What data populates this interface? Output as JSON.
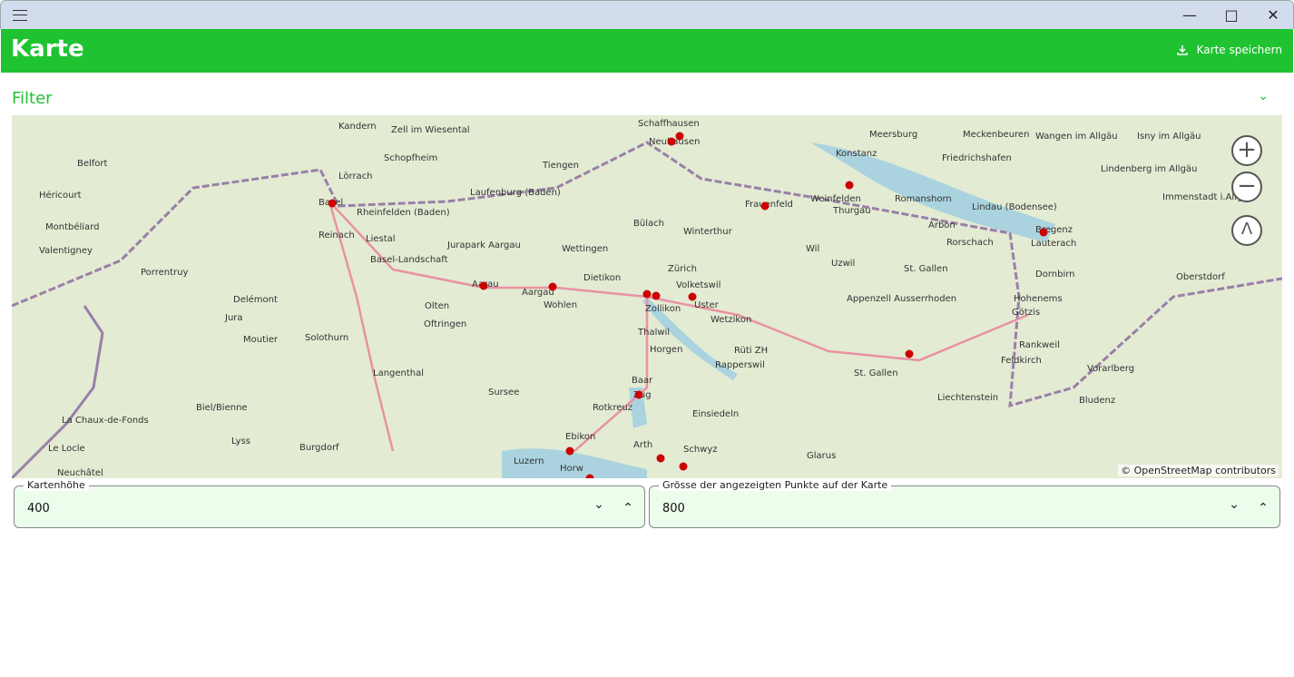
{
  "window": {
    "menu_icon": "hamburger-icon",
    "minimize_icon": "minimize-icon",
    "maximize_icon": "maximize-icon",
    "close_icon": "close-icon"
  },
  "header": {
    "title": "Karte",
    "save_label": "Karte speichern",
    "save_icon": "download-icon",
    "color": "#1fc331"
  },
  "filter": {
    "label": "Filter",
    "expand_icon": "chevron-down-icon"
  },
  "map": {
    "attribution": "© OpenStreetMap contributors",
    "marker_color": "#cc0000",
    "labels": [
      "Schaffhausen",
      "Neuhausen",
      "Kandern",
      "Zell im Wiesental",
      "Meersburg",
      "Meckenbeuren",
      "Belfort",
      "Schopfheim",
      "Tiengen",
      "Konstanz",
      "Friedrichshafen",
      "Lörrach",
      "Basel",
      "Rheinfelden (Baden)",
      "Laufenburg (Baden)",
      "Frauenfeld",
      "Weinfelden",
      "Romanshorn",
      "Lindau (Bodensee)",
      "Héricourt",
      "Montbéliard",
      "Bülach",
      "Winterthur",
      "Thurgau",
      "Arbon",
      "Bregenz",
      "Valentigney",
      "Reinach",
      "Liestal",
      "Jurapark Aargau",
      "Wettingen",
      "Wil",
      "Rorschach",
      "Lauterach",
      "Basel-Landschaft",
      "Dietikon",
      "Zürich",
      "Uzwil",
      "St. Gallen",
      "Dornbirn",
      "Porrentruy",
      "Aarau",
      "Aargau",
      "Volketswil",
      "Hohenems",
      "Delémont",
      "Olten",
      "Wohlen",
      "Zollikon",
      "Uster",
      "Appenzell Ausserrhoden",
      "Götzis",
      "Jura",
      "Oftringen",
      "Wetzikon",
      "Thalwil",
      "Horgen",
      "Rüti ZH",
      "Moutier",
      "Solothurn",
      "Rankweil",
      "Rapperswil",
      "Feldkirch",
      "Langenthal",
      "St. Gallen",
      "Vorarlberg",
      "Baar",
      "Sursee",
      "Zug",
      "Liechtenstein",
      "Biel/Bienne",
      "Rotkreuz",
      "Einsiedeln",
      "Bludenz",
      "La Chaux-de-Fonds",
      "Ebikon",
      "Arth",
      "Schwyz",
      "Lyss",
      "Burgdorf",
      "Luzern",
      "Horw",
      "Glarus",
      "Le Locle",
      "Neuchâtel",
      "Wangen im Allgäu",
      "Isny im Allgäu",
      "Lindenberg im Allgäu",
      "Immenstadt i.Allgäu",
      "Oberstdorf"
    ]
  },
  "fields": [
    {
      "label": "Kartenhöhe",
      "value": "400"
    },
    {
      "label": "Grösse der angezeigten Punkte auf der Karte",
      "value": "800"
    }
  ]
}
